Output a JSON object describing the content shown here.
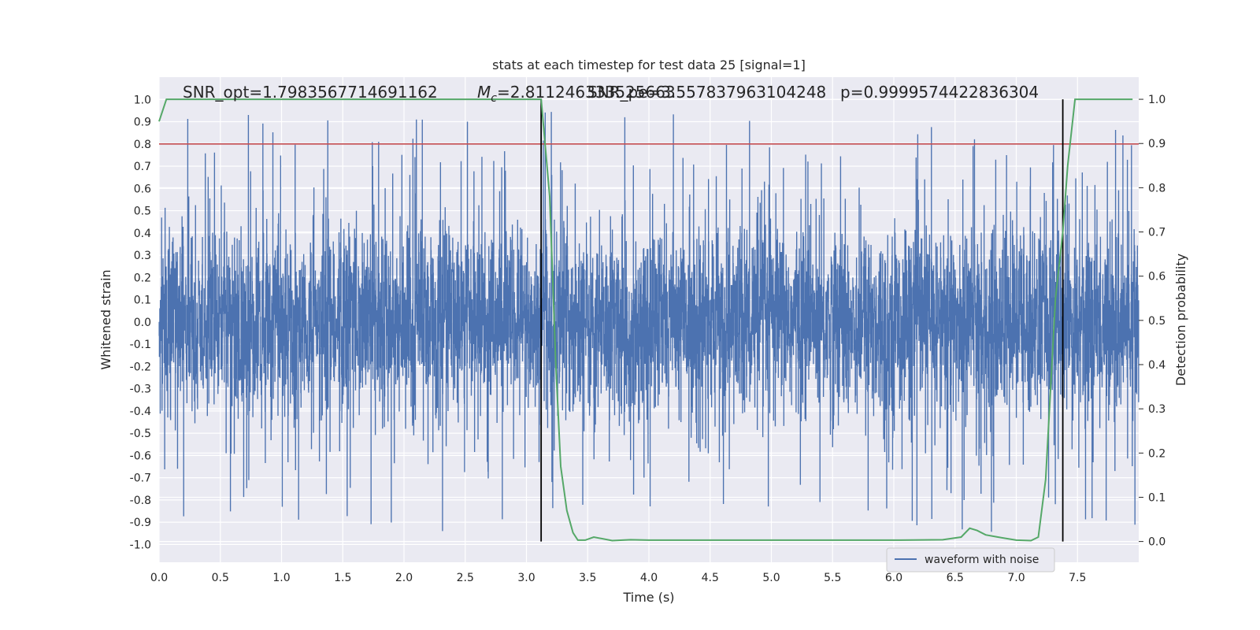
{
  "chart_data": {
    "type": "line",
    "title": "stats at each timestep for test data 25 [signal=1]",
    "xlabel": "Time (s)",
    "ylabel_left": "Whitened strain",
    "ylabel_right": "Detection probability",
    "xlim": [
      0.0,
      8.0
    ],
    "ylim_left": [
      -1.08,
      1.1
    ],
    "ylim_right": [
      -0.047,
      1.05
    ],
    "x_ticks": [
      "0.0",
      "0.5",
      "1.0",
      "1.5",
      "2.0",
      "2.5",
      "3.0",
      "3.5",
      "4.0",
      "4.5",
      "5.0",
      "5.5",
      "6.0",
      "6.5",
      "7.0",
      "7.5"
    ],
    "y_left_ticks": [
      "1.0",
      "0.9",
      "0.8",
      "0.7",
      "0.6",
      "0.5",
      "0.4",
      "0.3",
      "0.2",
      "0.1",
      "0.0",
      "-0.1",
      "-0.2",
      "-0.3",
      "-0.4",
      "-0.5",
      "-0.6",
      "-0.7",
      "-0.8",
      "-0.9",
      "-1.0"
    ],
    "y_right_ticks": [
      "1.0",
      "0.9",
      "0.8",
      "0.7",
      "0.6",
      "0.5",
      "0.4",
      "0.3",
      "0.2",
      "0.1",
      "0.0"
    ],
    "annotations": {
      "snr_opt": "SNR_opt=1.7983567714691162",
      "mc": "=2.811246333525663",
      "mc_symbol": "M",
      "mc_sub": "c",
      "snr_pe": "SNR_pe=3.557837963104248",
      "p": "p=0.9999574422836304"
    },
    "threshold_line": {
      "y": 0.8,
      "color": "#c44e52"
    },
    "vertical_lines_x": [
      3.12,
      7.38
    ],
    "legend": {
      "entries": [
        "waveform with noise"
      ],
      "placement": "lower-right"
    },
    "grid": true,
    "series": [
      {
        "name": "waveform with noise",
        "color": "#4c72b0",
        "axis": "left",
        "description": "dense whitened strain noise, samples between -1.0 and 1.0"
      },
      {
        "color": "#55a868",
        "axis": "right",
        "x": [
          0.0,
          0.06,
          0.15,
          0.5,
          1.0,
          1.5,
          2.0,
          2.5,
          3.0,
          3.12,
          3.19,
          3.24,
          3.28,
          3.33,
          3.38,
          3.42,
          3.48,
          3.55,
          3.7,
          3.85,
          4.0,
          4.2,
          4.5,
          5.0,
          5.5,
          6.0,
          6.4,
          6.55,
          6.62,
          6.68,
          6.75,
          6.85,
          7.0,
          7.12,
          7.18,
          7.24,
          7.32,
          7.38,
          7.42,
          7.48,
          7.58,
          7.7,
          7.85,
          7.95
        ],
        "values": [
          0.95,
          1.0,
          1.0,
          1.0,
          1.0,
          1.0,
          1.0,
          1.0,
          1.0,
          1.0,
          0.78,
          0.4,
          0.17,
          0.07,
          0.02,
          0.003,
          0.003,
          0.01,
          0.002,
          0.004,
          0.003,
          0.003,
          0.003,
          0.003,
          0.003,
          0.003,
          0.004,
          0.01,
          0.03,
          0.025,
          0.015,
          0.01,
          0.003,
          0.002,
          0.01,
          0.14,
          0.55,
          0.7,
          0.85,
          1.0,
          1.0,
          1.0,
          1.0,
          1.0
        ]
      }
    ]
  }
}
